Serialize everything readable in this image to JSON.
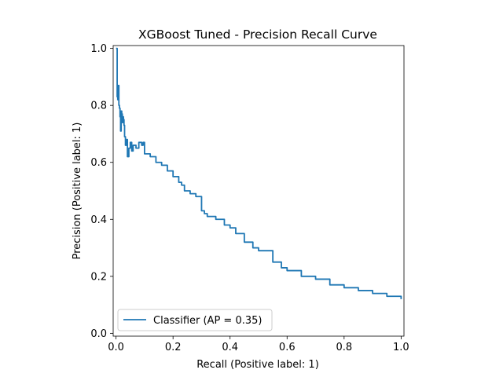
{
  "chart_data": {
    "type": "line",
    "title": "XGBoost Tuned - Precision Recall Curve",
    "xlabel": "Recall (Positive label: 1)",
    "ylabel": "Precision (Positive label: 1)",
    "xlim": [
      -0.01,
      1.01
    ],
    "ylim": [
      -0.01,
      1.01
    ],
    "xticks": [
      0.0,
      0.2,
      0.4,
      0.6,
      0.8,
      1.0
    ],
    "yticks": [
      0.0,
      0.2,
      0.4,
      0.6,
      0.8,
      1.0
    ],
    "xtick_labels": [
      "0.0",
      "0.2",
      "0.4",
      "0.6",
      "0.8",
      "1.0"
    ],
    "ytick_labels": [
      "0.0",
      "0.2",
      "0.4",
      "0.6",
      "0.8",
      "1.0"
    ],
    "grid": false,
    "legend_position": "lower-left",
    "series": [
      {
        "name": "Classifier (AP = 0.35)",
        "color": "#1f77b4",
        "x": [
          0.0,
          0.003,
          0.004,
          0.006,
          0.008,
          0.01,
          0.012,
          0.014,
          0.016,
          0.018,
          0.02,
          0.022,
          0.024,
          0.026,
          0.028,
          0.03,
          0.033,
          0.036,
          0.04,
          0.045,
          0.05,
          0.055,
          0.06,
          0.07,
          0.08,
          0.09,
          0.095,
          0.1,
          0.12,
          0.14,
          0.16,
          0.18,
          0.2,
          0.22,
          0.23,
          0.24,
          0.26,
          0.28,
          0.3,
          0.31,
          0.32,
          0.35,
          0.38,
          0.4,
          0.42,
          0.45,
          0.48,
          0.5,
          0.55,
          0.58,
          0.6,
          0.65,
          0.7,
          0.75,
          0.8,
          0.85,
          0.9,
          0.95,
          1.0
        ],
        "y": [
          1.0,
          1.0,
          0.83,
          0.82,
          0.87,
          0.8,
          0.79,
          0.76,
          0.71,
          0.78,
          0.77,
          0.74,
          0.76,
          0.75,
          0.73,
          0.69,
          0.66,
          0.68,
          0.62,
          0.65,
          0.67,
          0.64,
          0.66,
          0.65,
          0.67,
          0.66,
          0.67,
          0.63,
          0.62,
          0.6,
          0.59,
          0.57,
          0.55,
          0.53,
          0.52,
          0.5,
          0.49,
          0.48,
          0.43,
          0.42,
          0.41,
          0.4,
          0.38,
          0.37,
          0.35,
          0.32,
          0.3,
          0.29,
          0.25,
          0.23,
          0.22,
          0.2,
          0.19,
          0.17,
          0.16,
          0.15,
          0.14,
          0.13,
          0.12
        ]
      }
    ]
  }
}
